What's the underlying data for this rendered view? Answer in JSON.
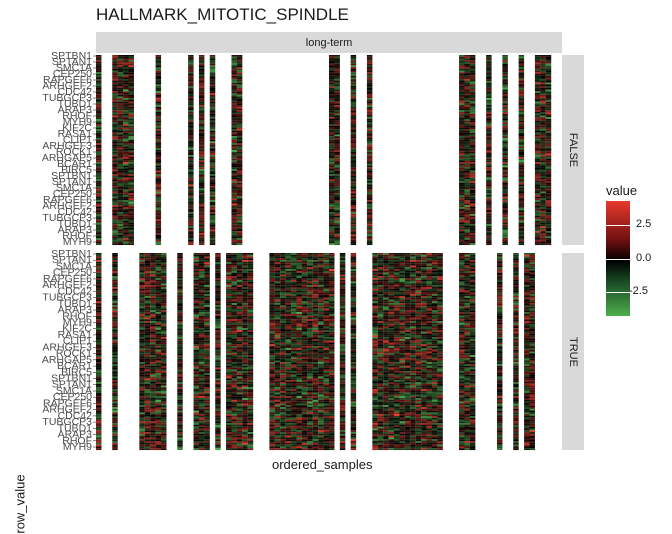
{
  "chart_data": {
    "type": "heatmap",
    "title": "HALLMARK_MITOTIC_SPINDLE",
    "xlabel": "ordered_samples",
    "ylabel": "row_value",
    "facet_column": "long-term",
    "facet_rows": [
      "FALSE",
      "TRUE"
    ],
    "legend": {
      "title": "value",
      "ticks": [
        "2.5",
        "0.0",
        "-2.5"
      ],
      "range": [
        -4.5,
        4
      ],
      "colors": {
        "high": "#e8392c",
        "mid": "#000000",
        "low": "#4cae4c"
      }
    },
    "columns_present": {
      "FALSE": [
        0,
        3,
        4,
        5,
        6,
        11,
        17,
        19,
        21,
        25,
        26,
        43,
        44,
        47,
        50,
        67,
        68,
        69,
        72,
        75,
        78,
        81,
        82,
        83
      ],
      "TRUE": [
        0,
        3,
        8,
        9,
        10,
        11,
        12,
        15,
        18,
        19,
        20,
        22,
        24,
        25,
        26,
        27,
        28,
        32,
        33,
        34,
        35,
        36,
        37,
        38,
        39,
        40,
        41,
        42,
        43,
        45,
        47,
        51,
        52,
        53,
        54,
        55,
        56,
        57,
        58,
        59,
        60,
        61,
        62,
        63,
        67,
        68,
        69,
        74,
        77,
        79,
        80
      ]
    },
    "row_labels": [
      "SPTBN1",
      "SPTAN1",
      "SMC1A",
      "CEP250",
      "RAPGEF6",
      "ARHGEF2",
      "CDC42",
      "TUBGCP3",
      "TUBD1",
      "ARAP3",
      "RHOF",
      "MYH9",
      "KIF2C",
      "RASA1",
      "CLIP1",
      "ARHGEF3",
      "ROCK1",
      "ARHGAP5",
      "BCAR1",
      "BIRC5"
    ]
  }
}
